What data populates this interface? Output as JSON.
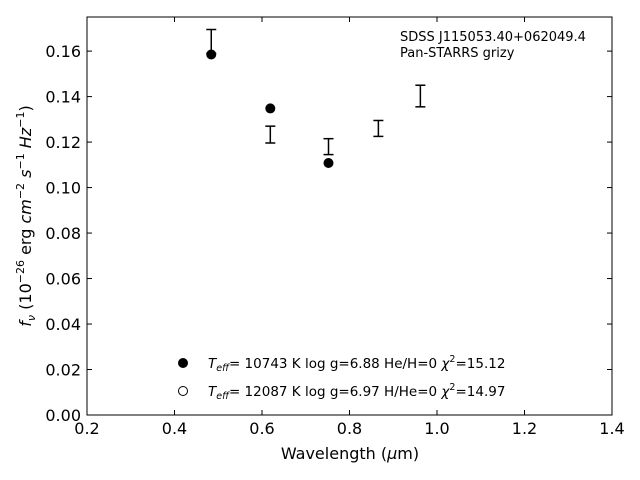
{
  "chart_data": {
    "type": "scatter",
    "title": "",
    "xlabel": "Wavelength (μm)",
    "ylabel": "f_ν (10^−26 erg cm^−2 s^−1 Hz^−1)",
    "xlim": [
      0.2,
      1.4
    ],
    "ylim": [
      0.0,
      0.175
    ],
    "xticks": [
      0.2,
      0.4,
      0.6,
      0.8,
      1.0,
      1.2,
      1.4
    ],
    "xtick_labels": [
      "0.2",
      "0.4",
      "0.6",
      "0.8",
      "1.0",
      "1.2",
      "1.4"
    ],
    "yticks": [
      0.0,
      0.02,
      0.04,
      0.06,
      0.08,
      0.1,
      0.12,
      0.14,
      0.16
    ],
    "ytick_labels": [
      "0.00",
      "0.02",
      "0.04",
      "0.06",
      "0.08",
      "0.10",
      "0.12",
      "0.14",
      "0.16"
    ],
    "grid": false,
    "annotation": {
      "line1": "SDSS J115053.40+062049.4",
      "line2": "Pan-STARRS grizy",
      "position": "top-right"
    },
    "observed": {
      "x": [
        0.484,
        0.619,
        0.752,
        0.866,
        0.962
      ],
      "y": [
        0.164,
        0.1233,
        0.118,
        0.126,
        0.14
      ],
      "err_low": [
        0.005,
        0.0037,
        0.0035,
        0.0035,
        0.0045
      ],
      "err_high": [
        0.0055,
        0.0037,
        0.0035,
        0.0035,
        0.005
      ]
    },
    "series": [
      {
        "label_teff": "= 10743 K",
        "label_rest": "log g=6.88  He/H=0",
        "label_chi2": "=15.12",
        "marker": "filled-circle",
        "x": [
          0.484,
          0.619,
          0.752
        ],
        "y": [
          0.1585,
          0.1348,
          0.1108
        ]
      },
      {
        "label_teff": "= 12087 K",
        "label_rest": "log g=6.97  H/He=0",
        "label_chi2": "=14.97",
        "marker": "open-circle",
        "x": [],
        "y": []
      }
    ],
    "legend_placement": "lower-center",
    "colors": {
      "marker": "#000000",
      "axes": "#000000",
      "background": "#ffffff"
    }
  }
}
